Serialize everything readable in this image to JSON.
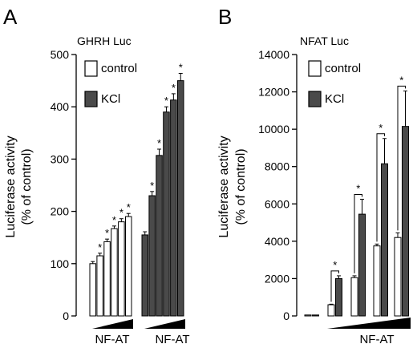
{
  "chart_data": [
    {
      "panel": "A",
      "type": "bar",
      "title": "GHRH Luc",
      "ylabel_line1": "Luciferase activity",
      "ylabel_line2": "(% of control)",
      "ylim": [
        0,
        500
      ],
      "yticks": [
        0,
        100,
        200,
        300,
        400,
        500
      ],
      "legend": [
        {
          "name": "control",
          "color": "#ffffff"
        },
        {
          "name": "KCl",
          "color": "#4a4a4a"
        }
      ],
      "legend_position": "top-left",
      "x_group_labels": [
        "NF-AT",
        "NF-AT"
      ],
      "series": [
        {
          "name": "control",
          "color": "#ffffff",
          "values": [
            100,
            115,
            142,
            167,
            180,
            190
          ],
          "errors": [
            4,
            5,
            5,
            5,
            6,
            6
          ],
          "significant": [
            false,
            true,
            true,
            true,
            true,
            true
          ]
        },
        {
          "name": "KCl",
          "color": "#4a4a4a",
          "values": [
            155,
            230,
            307,
            390,
            413,
            450
          ],
          "errors": [
            6,
            8,
            12,
            10,
            12,
            14
          ],
          "significant": [
            false,
            true,
            true,
            true,
            true,
            true
          ]
        }
      ],
      "significance_marker": "*"
    },
    {
      "panel": "B",
      "type": "bar",
      "title": "NFAT Luc",
      "ylabel_line1": "Luciferase activity",
      "ylabel_line2": "(% of control)",
      "ylim": [
        0,
        14000
      ],
      "yticks": [
        0,
        2000,
        4000,
        6000,
        8000,
        10000,
        12000,
        14000
      ],
      "legend": [
        {
          "name": "control",
          "color": "#ffffff"
        },
        {
          "name": "KCl",
          "color": "#4a4a4a"
        }
      ],
      "legend_position": "top-left",
      "x_group_labels": [
        "NF-AT"
      ],
      "pairs": [
        {
          "control": 50,
          "control_err": 0,
          "kcl": 50,
          "kcl_err": 0,
          "significant": false
        },
        {
          "control": 600,
          "control_err": 30,
          "kcl": 2000,
          "kcl_err": 150,
          "significant": true
        },
        {
          "control": 2050,
          "control_err": 100,
          "kcl": 5450,
          "kcl_err": 800,
          "significant": true
        },
        {
          "control": 3750,
          "control_err": 100,
          "kcl": 8150,
          "kcl_err": 1350,
          "significant": true
        },
        {
          "control": 4200,
          "control_err": 250,
          "kcl": 10150,
          "kcl_err": 1900,
          "significant": true
        }
      ],
      "significance_marker": "*"
    }
  ]
}
